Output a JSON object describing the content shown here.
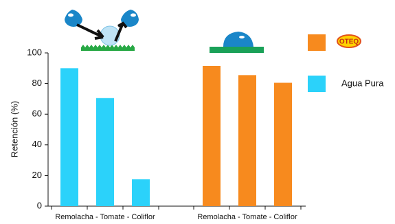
{
  "chart_data": {
    "type": "bar",
    "y_label": "Retención (%)",
    "ylim": [
      0,
      100
    ],
    "yticks": [
      0,
      20,
      40,
      60,
      80,
      100
    ],
    "group_labels": [
      "Remolacha - Tomate - Coliflor",
      "Remolacha - Tomate - Coliflor"
    ],
    "series": [
      {
        "name": "Agua Pura",
        "color": "#2bd2fa",
        "values": [
          90,
          70.5,
          17.5
        ]
      },
      {
        "name": "OTEQ",
        "color": "#f78a1e",
        "values": [
          91.5,
          85.5,
          80.5
        ]
      }
    ]
  }
}
